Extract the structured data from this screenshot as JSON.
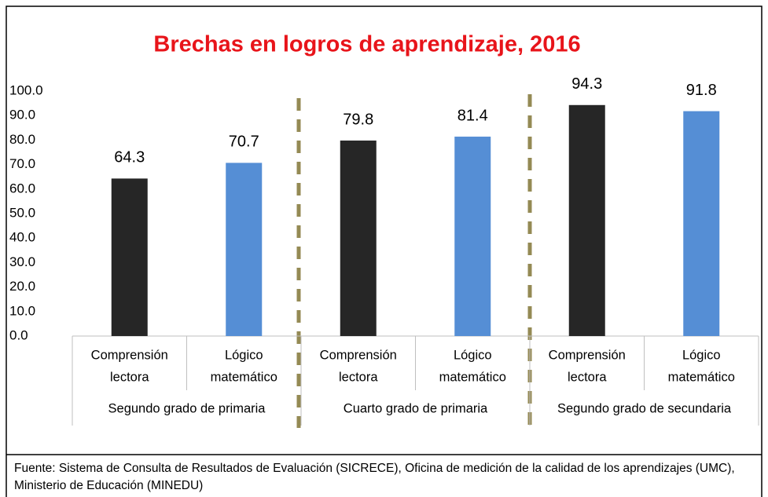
{
  "chart_data": {
    "type": "bar",
    "title": "Brechas en logros de aprendizaje, 2016",
    "categories": [
      [
        "Comprensión",
        "lectora"
      ],
      [
        "Lógico",
        "matemático"
      ],
      [
        "Comprensión",
        "lectora"
      ],
      [
        "Lógico",
        "matemático"
      ],
      [
        "Comprensión",
        "lectora"
      ],
      [
        "Lógico",
        "matemático"
      ]
    ],
    "groups": [
      "Segundo grado de primaria",
      "Cuarto grado de primaria",
      "Segundo grado de secundaria"
    ],
    "values": [
      64.3,
      70.7,
      79.8,
      81.4,
      94.3,
      91.8
    ],
    "colors": [
      "#262626",
      "#558ed5",
      "#262626",
      "#558ed5",
      "#262626",
      "#558ed5"
    ],
    "ylim": [
      0,
      100
    ],
    "yticks": [
      {
        "value": 0,
        "label": "0.0"
      },
      {
        "value": 10,
        "label": "10.0"
      },
      {
        "value": 20,
        "label": "20.0"
      },
      {
        "value": 30,
        "label": "30.0"
      },
      {
        "value": 40,
        "label": "40.0"
      },
      {
        "value": 50,
        "label": "50.0"
      },
      {
        "value": 60,
        "label": "60.0"
      },
      {
        "value": 70,
        "label": "70.0"
      },
      {
        "value": 80,
        "label": "80.0"
      },
      {
        "value": 90,
        "label": "90.0"
      },
      {
        "value": 100,
        "label": "100.0"
      }
    ],
    "grid": false
  },
  "note": "Fuente: Sistema de Consulta de Resultados de Evaluación (SICRECE), Oficina de medición de la calidad de los aprendizajes (UMC), Ministerio de Educación (MINEDU)"
}
